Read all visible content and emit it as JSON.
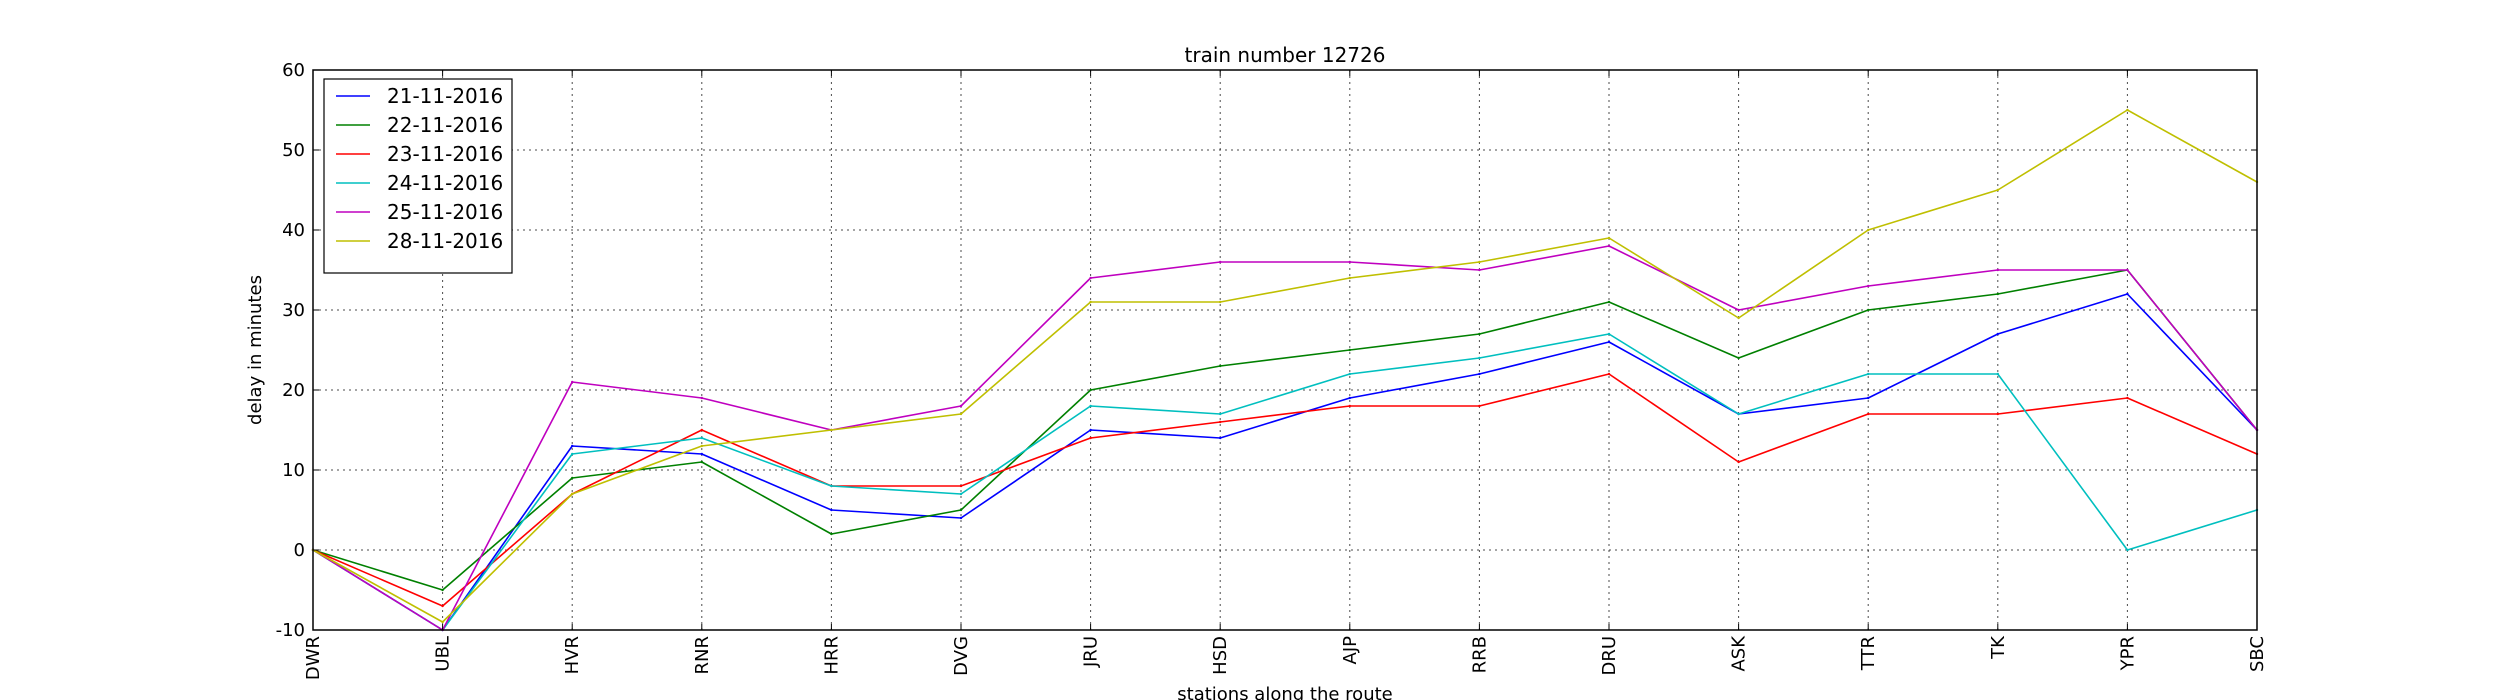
{
  "chart_data": {
    "type": "line",
    "title": "train number 12726",
    "xlabel": "stations along the route",
    "ylabel": "delay in minutes",
    "categories": [
      "DWR",
      "UBL",
      "HVR",
      "RNR",
      "HRR",
      "DVG",
      "JRU",
      "HSD",
      "AJP",
      "RRB",
      "DRU",
      "ASK",
      "TTR",
      "TK",
      "YPR",
      "SBC"
    ],
    "ylim": [
      -10,
      60
    ],
    "yticks": [
      "-10",
      "0",
      "10",
      "20",
      "30",
      "40",
      "50",
      "60"
    ],
    "grid": true,
    "legend_position": "top-left",
    "series": [
      {
        "name": "21-11-2016",
        "color": "#0000ff",
        "values": [
          0,
          -10,
          13,
          12,
          5,
          4,
          15,
          14,
          19,
          22,
          26,
          17,
          19,
          27,
          32,
          15
        ]
      },
      {
        "name": "22-11-2016",
        "color": "#008000",
        "values": [
          0,
          -5,
          9,
          11,
          2,
          5,
          20,
          23,
          25,
          27,
          31,
          24,
          30,
          32,
          35,
          15
        ]
      },
      {
        "name": "23-11-2016",
        "color": "#ff0000",
        "values": [
          0,
          -7,
          7,
          15,
          8,
          8,
          14,
          16,
          18,
          18,
          22,
          11,
          17,
          17,
          19,
          12
        ]
      },
      {
        "name": "24-11-2016",
        "color": "#00bfbf",
        "values": [
          0,
          -10,
          12,
          14,
          8,
          7,
          18,
          17,
          22,
          24,
          27,
          17,
          22,
          22,
          0,
          5
        ]
      },
      {
        "name": "25-11-2016",
        "color": "#bf00bf",
        "values": [
          0,
          -10,
          21,
          19,
          15,
          18,
          34,
          36,
          36,
          35,
          38,
          30,
          33,
          35,
          35,
          15
        ]
      },
      {
        "name": "28-11-2016",
        "color": "#bfbf00",
        "values": [
          0,
          -9,
          7,
          13,
          15,
          17,
          31,
          31,
          34,
          36,
          39,
          29,
          40,
          45,
          55,
          46
        ]
      }
    ]
  }
}
